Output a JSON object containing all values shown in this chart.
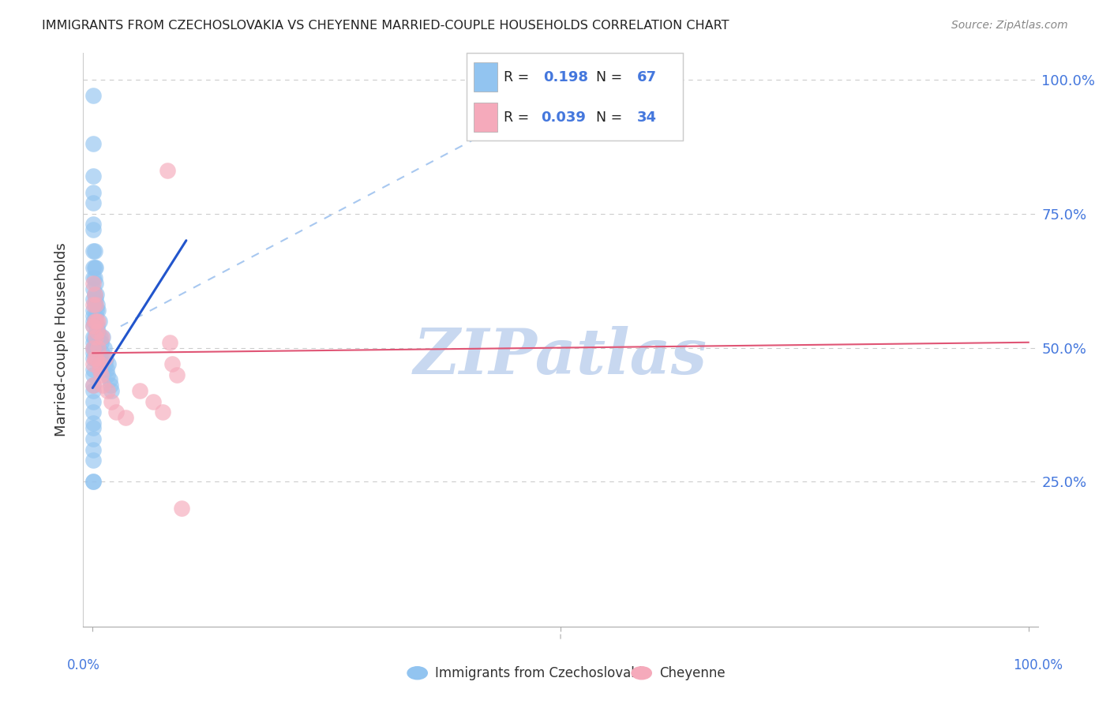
{
  "title": "IMMIGRANTS FROM CZECHOSLOVAKIA VS CHEYENNE MARRIED-COUPLE HOUSEHOLDS CORRELATION CHART",
  "source": "Source: ZipAtlas.com",
  "ylabel": "Married-couple Households",
  "legend_blue_R": "0.198",
  "legend_blue_N": "67",
  "legend_pink_R": "0.039",
  "legend_pink_N": "34",
  "blue_color": "#92C4F0",
  "pink_color": "#F5AABB",
  "blue_line_color": "#2255CC",
  "pink_line_color": "#E05575",
  "dashed_line_color": "#A8C8F0",
  "grid_color": "#CCCCCC",
  "title_color": "#222222",
  "source_color": "#888888",
  "axis_label_color": "#4477DD",
  "background_color": "#FFFFFF",
  "watermark": "ZIPatlas",
  "watermark_color": "#C8D8F0",
  "xmin": 0.0,
  "xmax": 1.0,
  "ymin": 0.0,
  "ymax": 1.0,
  "blue_line_x0": 0.0,
  "blue_line_x1": 0.1,
  "blue_line_y0": 0.425,
  "blue_line_y1": 0.7,
  "pink_line_x0": 0.0,
  "pink_line_x1": 1.0,
  "pink_line_y0": 0.49,
  "pink_line_y1": 0.51,
  "dashed_line_x0": 0.03,
  "dashed_line_x1": 0.55,
  "dashed_line_y0": 0.54,
  "dashed_line_y1": 1.02,
  "blue_scatter_x": [
    0.001,
    0.001,
    0.001,
    0.001,
    0.001,
    0.001,
    0.001,
    0.001,
    0.001,
    0.001,
    0.001,
    0.001,
    0.001,
    0.001,
    0.001,
    0.001,
    0.001,
    0.001,
    0.001,
    0.001,
    0.002,
    0.002,
    0.002,
    0.002,
    0.002,
    0.002,
    0.002,
    0.002,
    0.003,
    0.003,
    0.003,
    0.003,
    0.004,
    0.004,
    0.004,
    0.005,
    0.005,
    0.006,
    0.006,
    0.007,
    0.008,
    0.009,
    0.01,
    0.011,
    0.012,
    0.013,
    0.014,
    0.015,
    0.016,
    0.017,
    0.018,
    0.019,
    0.02,
    0.001,
    0.001,
    0.001,
    0.001,
    0.001,
    0.001,
    0.001,
    0.001,
    0.001,
    0.001,
    0.001,
    0.001,
    0.001,
    0.001
  ],
  "blue_scatter_y": [
    0.97,
    0.88,
    0.82,
    0.79,
    0.77,
    0.73,
    0.72,
    0.68,
    0.65,
    0.63,
    0.61,
    0.59,
    0.57,
    0.56,
    0.55,
    0.54,
    0.52,
    0.51,
    0.5,
    0.49,
    0.68,
    0.65,
    0.63,
    0.6,
    0.58,
    0.55,
    0.52,
    0.5,
    0.65,
    0.62,
    0.59,
    0.56,
    0.6,
    0.57,
    0.53,
    0.58,
    0.54,
    0.57,
    0.53,
    0.55,
    0.52,
    0.51,
    0.49,
    0.52,
    0.5,
    0.47,
    0.48,
    0.46,
    0.45,
    0.47,
    0.44,
    0.43,
    0.42,
    0.48,
    0.46,
    0.45,
    0.43,
    0.42,
    0.4,
    0.38,
    0.36,
    0.35,
    0.33,
    0.31,
    0.29,
    0.25,
    0.25
  ],
  "pink_scatter_x": [
    0.001,
    0.001,
    0.001,
    0.001,
    0.001,
    0.001,
    0.002,
    0.002,
    0.002,
    0.003,
    0.003,
    0.004,
    0.004,
    0.005,
    0.006,
    0.006,
    0.007,
    0.008,
    0.009,
    0.01,
    0.011,
    0.013,
    0.016,
    0.02,
    0.025,
    0.035,
    0.05,
    0.065,
    0.075,
    0.08,
    0.082,
    0.085,
    0.09,
    0.095
  ],
  "pink_scatter_y": [
    0.62,
    0.58,
    0.54,
    0.5,
    0.47,
    0.43,
    0.6,
    0.55,
    0.48,
    0.58,
    0.52,
    0.55,
    0.48,
    0.53,
    0.55,
    0.5,
    0.46,
    0.47,
    0.45,
    0.52,
    0.43,
    0.48,
    0.42,
    0.4,
    0.38,
    0.37,
    0.42,
    0.4,
    0.38,
    0.83,
    0.51,
    0.47,
    0.45,
    0.2
  ]
}
